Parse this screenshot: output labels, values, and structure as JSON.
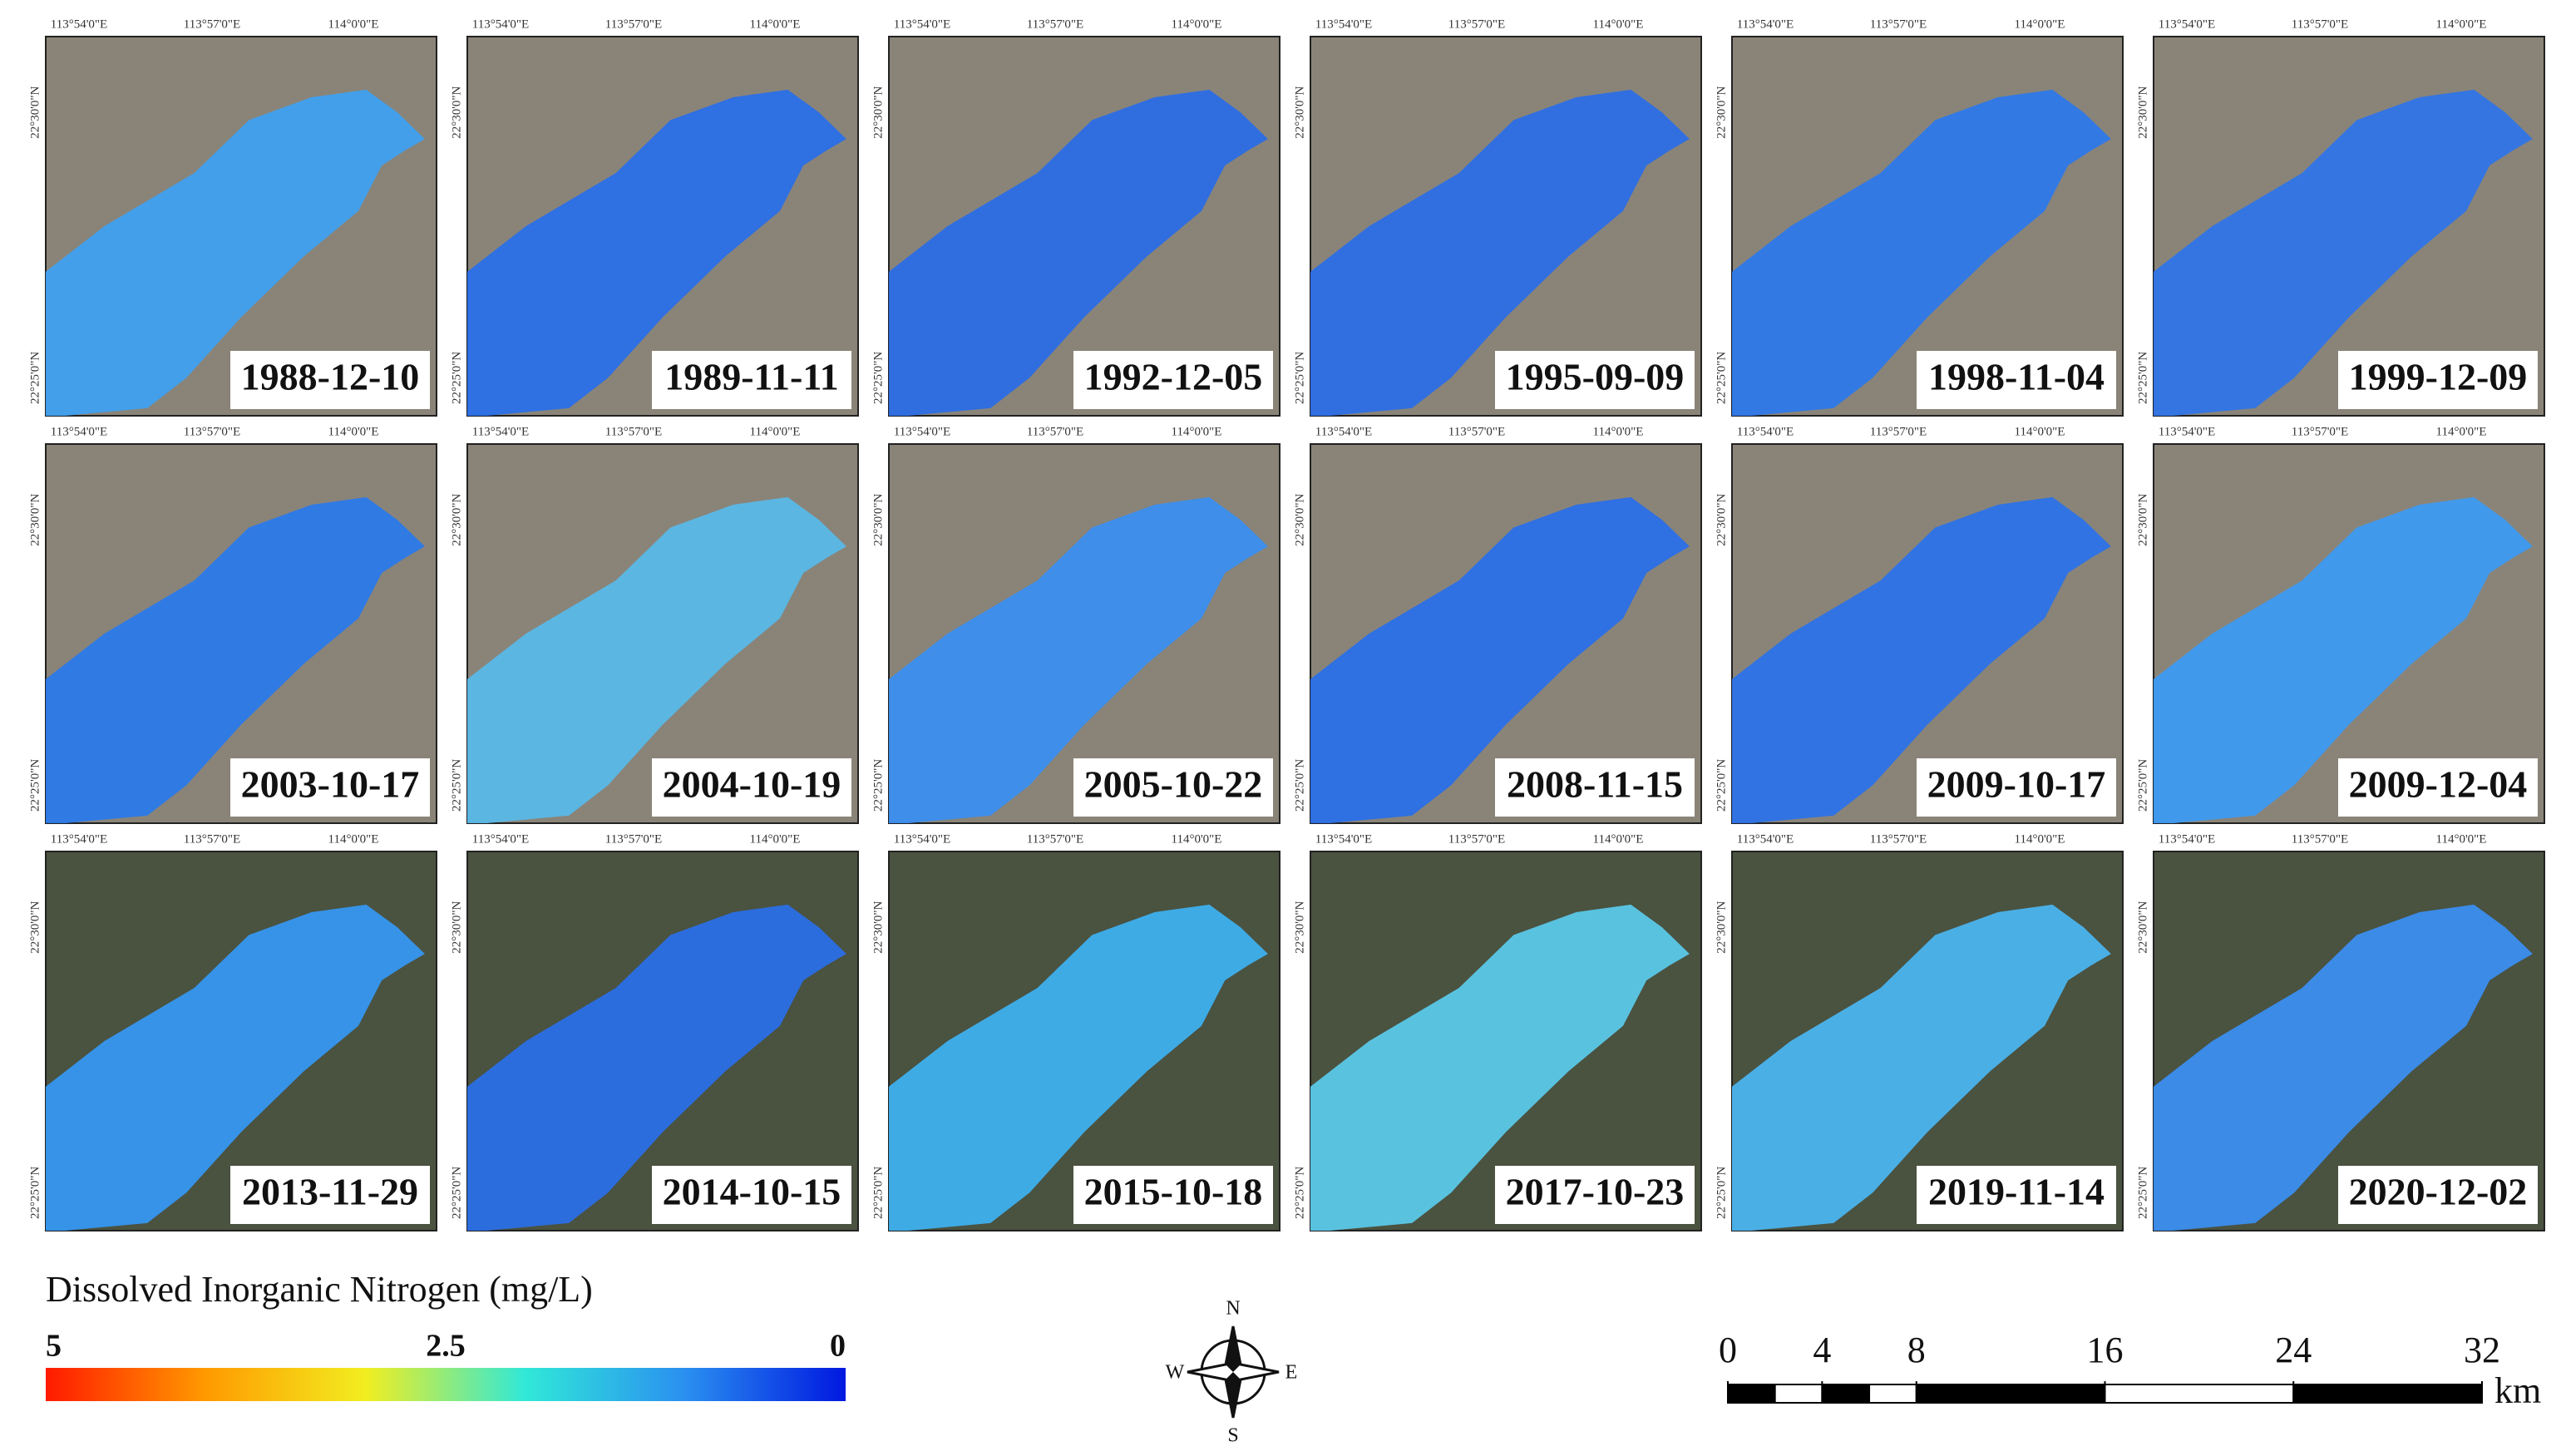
{
  "map_axes": {
    "lon_labels": [
      "113°54'0\"E",
      "113°57'0\"E",
      "114°0'0\"E"
    ],
    "lat_labels": [
      "22°30'0\"N",
      "22°25'0\"N"
    ]
  },
  "panels": [
    {
      "date": "1988-12-10",
      "color": "#3fa0f0"
    },
    {
      "date": "1989-11-11",
      "color": "#2a6fe8"
    },
    {
      "date": "1992-12-05",
      "color": "#2b6de6"
    },
    {
      "date": "1995-09-09",
      "color": "#2c6ee6"
    },
    {
      "date": "1998-11-04",
      "color": "#2d78ea"
    },
    {
      "date": "1999-12-09",
      "color": "#2f74e8"
    },
    {
      "date": "2003-10-17",
      "color": "#2b79ea"
    },
    {
      "date": "2004-10-19",
      "color": "#58b8e8"
    },
    {
      "date": "2005-10-22",
      "color": "#3a8ef0"
    },
    {
      "date": "2008-11-15",
      "color": "#2a6fe8"
    },
    {
      "date": "2009-10-17",
      "color": "#2c72e8"
    },
    {
      "date": "2009-12-04",
      "color": "#3d9af2"
    },
    {
      "date": "2013-11-29",
      "color": "#3597f0"
    },
    {
      "date": "2014-10-15",
      "color": "#2a6fe6"
    },
    {
      "date": "2015-10-18",
      "color": "#3db0ee"
    },
    {
      "date": "2017-10-23",
      "color": "#5ac8e8"
    },
    {
      "date": "2019-11-14",
      "color": "#4ab4ee"
    },
    {
      "date": "2020-12-02",
      "color": "#3a8ef0"
    }
  ],
  "colorbar": {
    "title": "Dissolved Inorganic Nitrogen (mg/L)",
    "range": [
      5,
      0
    ],
    "ticks": [
      5,
      2.5,
      0
    ],
    "colors": [
      "#ff1a00",
      "#ff9a00",
      "#f2ee20",
      "#30e8d8",
      "#2a8ff0",
      "#0018e0"
    ]
  },
  "compass": {
    "north": "N",
    "south": "S",
    "east": "E",
    "west": "W"
  },
  "scale_bar": {
    "range": [
      0,
      32
    ],
    "ticks": [
      0,
      4,
      8,
      16,
      24,
      32
    ],
    "unit": "km"
  }
}
